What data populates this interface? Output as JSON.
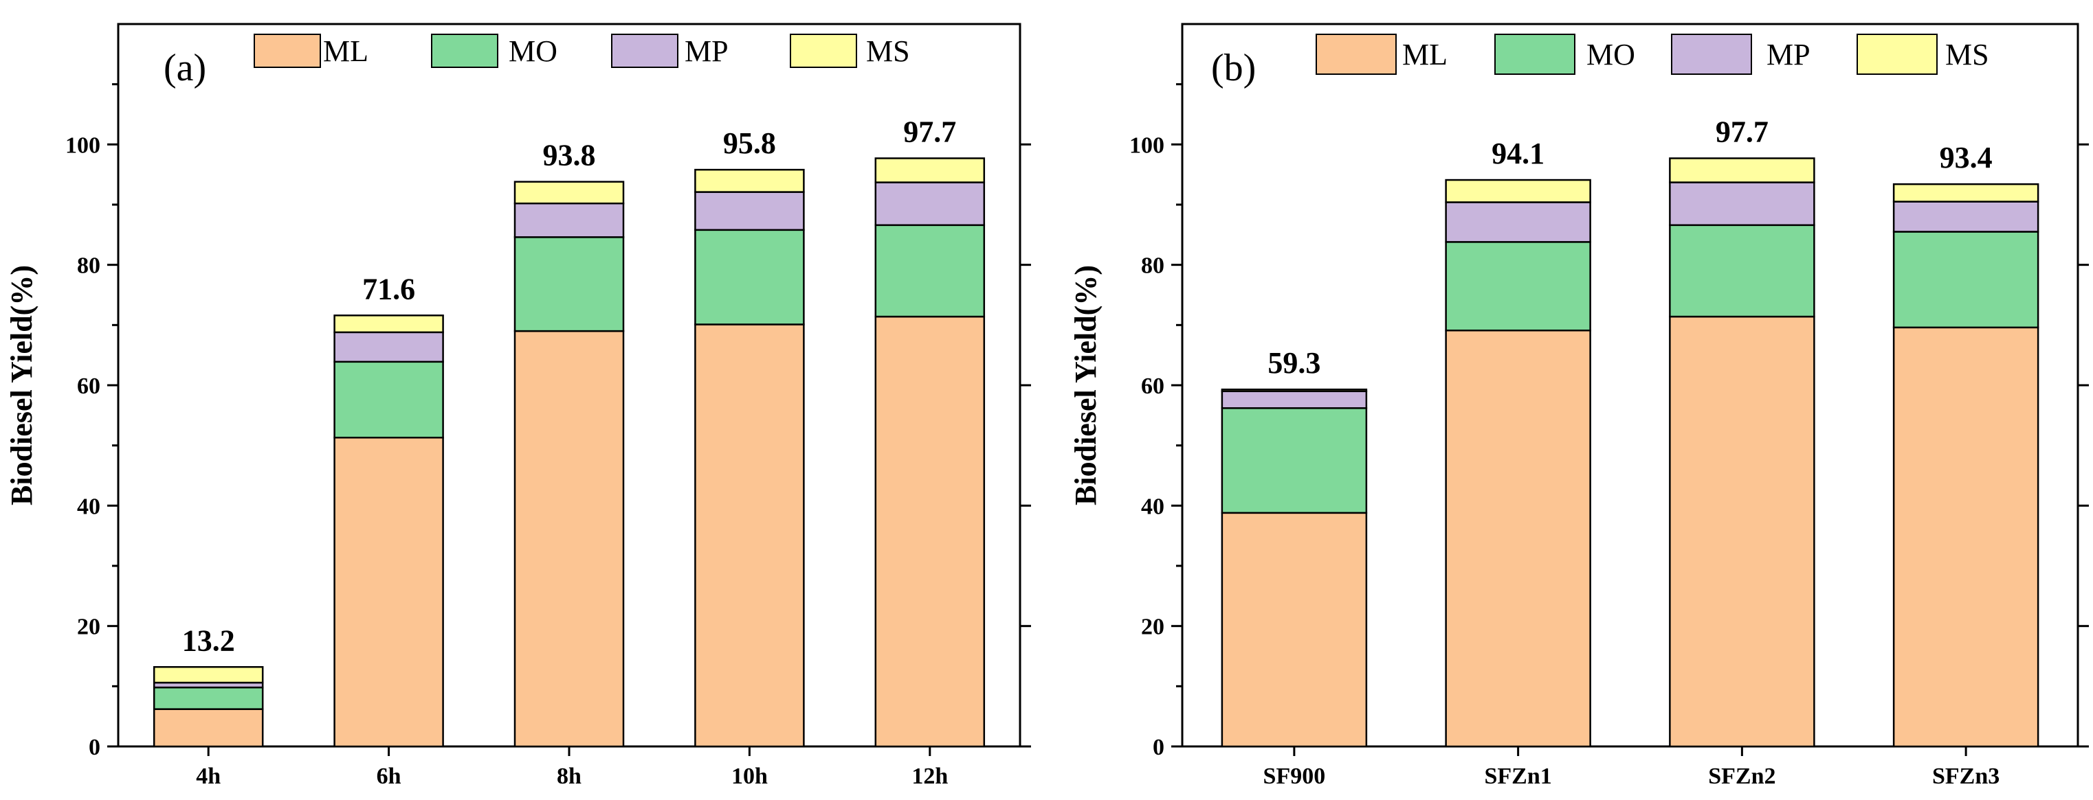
{
  "colors": {
    "ML": "#FCC593",
    "MO": "#80D99A",
    "MP": "#C8B5DC",
    "MS": "#FFFEA0",
    "axis": "#000000"
  },
  "chart_data": [
    {
      "type": "bar",
      "stacked": true,
      "panel_label": "(a)",
      "ylabel": "Biodiesel Yield(%)",
      "xlabel": "",
      "ylim": [
        0,
        120
      ],
      "yticks": [
        0,
        20,
        40,
        60,
        80,
        100
      ],
      "legend": [
        "ML",
        "MO",
        "MP",
        "MS"
      ],
      "legend_position": "top",
      "categories": [
        "4h",
        "6h",
        "8h",
        "10h",
        "12h"
      ],
      "series": [
        {
          "name": "ML",
          "values": [
            6.2,
            51.3,
            69.0,
            70.1,
            71.4
          ]
        },
        {
          "name": "MO",
          "values": [
            3.6,
            12.6,
            15.6,
            15.7,
            15.2
          ]
        },
        {
          "name": "MP",
          "values": [
            0.8,
            4.9,
            5.6,
            6.3,
            7.1
          ]
        },
        {
          "name": "MS",
          "values": [
            2.6,
            2.8,
            3.6,
            3.7,
            4.0
          ]
        }
      ],
      "totals": [
        "13.2",
        "71.6",
        "93.8",
        "95.8",
        "97.7"
      ]
    },
    {
      "type": "bar",
      "stacked": true,
      "panel_label": "(b)",
      "ylabel": "Biodiesel Yield(%)",
      "xlabel": "",
      "ylim": [
        0,
        120
      ],
      "yticks": [
        0,
        20,
        40,
        60,
        80,
        100
      ],
      "legend": [
        "ML",
        "MO",
        "MP",
        "MS"
      ],
      "legend_position": "top",
      "categories": [
        "SF900",
        "SFZn1",
        "SFZn2",
        "SFZn3"
      ],
      "series": [
        {
          "name": "ML",
          "values": [
            38.8,
            69.1,
            71.4,
            69.6
          ]
        },
        {
          "name": "MO",
          "values": [
            17.4,
            14.7,
            15.2,
            15.9
          ]
        },
        {
          "name": "MP",
          "values": [
            2.8,
            6.6,
            7.1,
            5.0
          ]
        },
        {
          "name": "MS",
          "values": [
            0.3,
            3.7,
            4.0,
            2.9
          ]
        }
      ],
      "totals": [
        "59.3",
        "94.1",
        "97.7",
        "93.4"
      ]
    }
  ]
}
